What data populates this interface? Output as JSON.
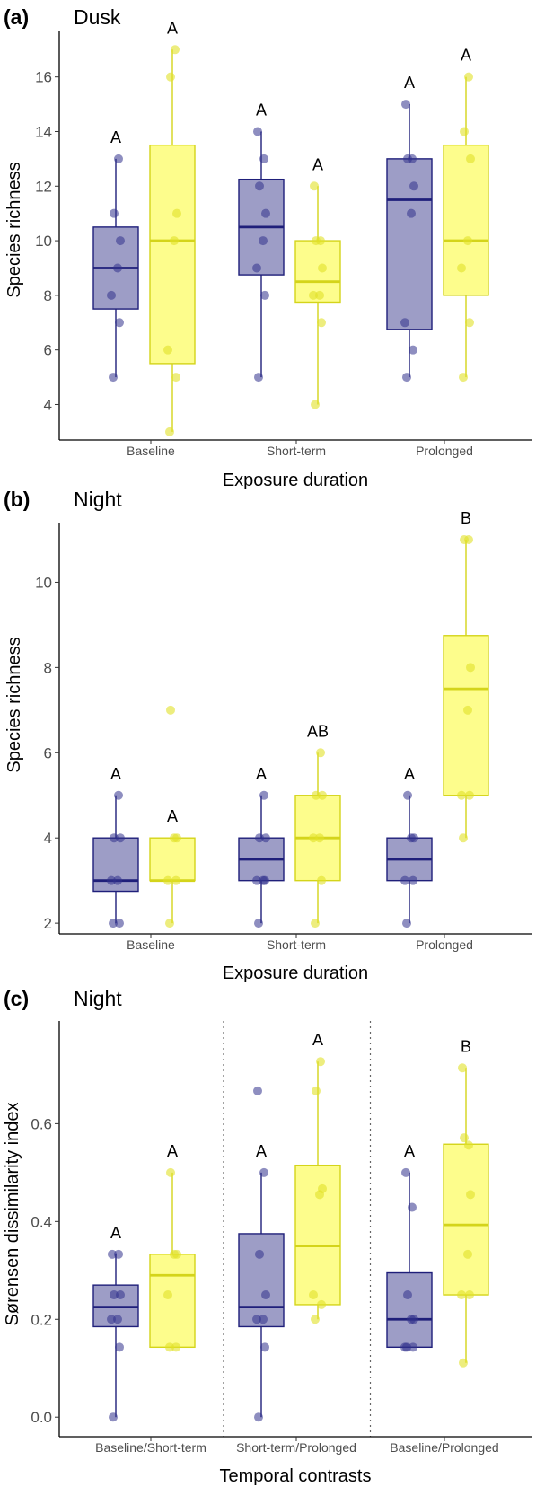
{
  "colors": {
    "group1_fill": "#9d9dc6",
    "group1_line": "#1f1f7a",
    "group2_fill": "#fdfd8c",
    "group2_line": "#d4d41a"
  },
  "chart_data": [
    {
      "type": "box",
      "panel_letter": "(a)",
      "title": "Dusk",
      "xlabel": "Exposure duration",
      "ylabel": "Species richness",
      "ylim": [
        2.7,
        17.7
      ],
      "yticks": [
        4,
        6,
        8,
        10,
        12,
        14,
        16
      ],
      "tick_decimals": 0,
      "grid": false,
      "separators": false,
      "categories": [
        "Baseline",
        "Short-term",
        "Prolonged"
      ],
      "groups": [
        {
          "color": "#9d9dc6",
          "boxes": [
            {
              "min": 5,
              "q1": 7.5,
              "median": 9,
              "q3": 10.5,
              "max": 13,
              "points": [
                5,
                7,
                8,
                9,
                10,
                11,
                13
              ],
              "letter": "A"
            },
            {
              "min": 5,
              "q1": 8.75,
              "median": 10.5,
              "q3": 12.25,
              "max": 14,
              "points": [
                5,
                8,
                9,
                10,
                11,
                12,
                13,
                14
              ],
              "letter": "A"
            },
            {
              "min": 5,
              "q1": 6.75,
              "median": 11.5,
              "q3": 13,
              "max": 15,
              "points": [
                5,
                6,
                7,
                11,
                12,
                13,
                13,
                15
              ],
              "letter": "A"
            }
          ]
        },
        {
          "color": "#fdfd8c",
          "boxes": [
            {
              "min": 3,
              "q1": 5.5,
              "median": 10,
              "q3": 13.5,
              "max": 17,
              "points": [
                3,
                5,
                6,
                10,
                11,
                16,
                17
              ],
              "letter": "A"
            },
            {
              "min": 4,
              "q1": 7.75,
              "median": 8.5,
              "q3": 10,
              "max": 12,
              "points": [
                4,
                7,
                8,
                8,
                9,
                10,
                10,
                12
              ],
              "letter": "A"
            },
            {
              "min": 5,
              "q1": 8,
              "median": 10,
              "q3": 13.5,
              "max": 16,
              "points": [
                5,
                7,
                9,
                10,
                13,
                14,
                16
              ],
              "letter": "A"
            }
          ]
        }
      ]
    },
    {
      "type": "box",
      "panel_letter": "(b)",
      "title": "Night",
      "xlabel": "Exposure duration",
      "ylabel": "Species richness",
      "ylim": [
        1.75,
        11.4
      ],
      "yticks": [
        2,
        4,
        6,
        8,
        10
      ],
      "tick_decimals": 0,
      "grid": false,
      "separators": false,
      "categories": [
        "Baseline",
        "Short-term",
        "Prolonged"
      ],
      "groups": [
        {
          "color": "#9d9dc6",
          "boxes": [
            {
              "min": 2,
              "q1": 2.75,
              "median": 3,
              "q3": 4,
              "max": 5,
              "points": [
                2,
                2,
                3,
                3,
                4,
                4,
                5
              ],
              "letter": "A"
            },
            {
              "min": 2,
              "q1": 3,
              "median": 3.5,
              "q3": 4,
              "max": 5,
              "points": [
                2,
                3,
                3,
                3,
                4,
                4,
                5
              ],
              "letter": "A"
            },
            {
              "min": 2,
              "q1": 3,
              "median": 3.5,
              "q3": 4,
              "max": 5,
              "points": [
                2,
                3,
                3,
                4,
                4,
                5
              ],
              "letter": "A"
            }
          ]
        },
        {
          "color": "#fdfd8c",
          "boxes": [
            {
              "min": 2,
              "q1": 3,
              "median": 3,
              "q3": 4,
              "max": 4,
              "points": [
                2,
                3,
                3,
                4,
                4,
                7
              ],
              "letter": "A"
            },
            {
              "min": 2,
              "q1": 3,
              "median": 4,
              "q3": 5,
              "max": 6,
              "points": [
                2,
                3,
                4,
                4,
                5,
                5,
                6
              ],
              "letter": "AB"
            },
            {
              "min": 4,
              "q1": 5,
              "median": 7.5,
              "q3": 8.75,
              "max": 11,
              "points": [
                4,
                5,
                5,
                7,
                8,
                11,
                11
              ],
              "letter": "B"
            }
          ]
        }
      ]
    },
    {
      "type": "box",
      "panel_letter": "(c)",
      "title": "Night",
      "xlabel": "Temporal contrasts",
      "ylabel": "Sørensen dissimilarity index",
      "ylim": [
        -0.04,
        0.81
      ],
      "yticks": [
        0.0,
        0.2,
        0.4,
        0.6
      ],
      "tick_decimals": 1,
      "grid": false,
      "separators": true,
      "categories": [
        "Baseline/Short-term",
        "Short-term/Prolonged",
        "Baseline/Prolonged"
      ],
      "groups": [
        {
          "color": "#9d9dc6",
          "boxes": [
            {
              "min": 0,
              "q1": 0.185,
              "median": 0.225,
              "q3": 0.27,
              "max": 0.333,
              "points": [
                0,
                0.143,
                0.2,
                0.2,
                0.25,
                0.25,
                0.333,
                0.333
              ],
              "letter": "A"
            },
            {
              "min": 0,
              "q1": 0.185,
              "median": 0.225,
              "q3": 0.375,
              "max": 0.5,
              "points": [
                0,
                0.143,
                0.2,
                0.2,
                0.25,
                0.333,
                0.5,
                0.667
              ],
              "letter": "A"
            },
            {
              "min": 0.143,
              "q1": 0.143,
              "median": 0.2,
              "q3": 0.295,
              "max": 0.5,
              "points": [
                0.143,
                0.143,
                0.143,
                0.2,
                0.2,
                0.25,
                0.429,
                0.5
              ],
              "letter": "A"
            }
          ]
        },
        {
          "color": "#fdfd8c",
          "boxes": [
            {
              "min": 0.143,
              "q1": 0.143,
              "median": 0.29,
              "q3": 0.333,
              "max": 0.5,
              "points": [
                0.143,
                0.143,
                0.25,
                0.333,
                0.333,
                0.5
              ],
              "letter": "A"
            },
            {
              "min": 0.2,
              "q1": 0.23,
              "median": 0.35,
              "q3": 0.515,
              "max": 0.727,
              "points": [
                0.2,
                0.23,
                0.25,
                0.455,
                0.467,
                0.667,
                0.727
              ],
              "letter": "A"
            },
            {
              "min": 0.111,
              "q1": 0.25,
              "median": 0.393,
              "q3": 0.558,
              "max": 0.714,
              "points": [
                0.111,
                0.25,
                0.25,
                0.333,
                0.455,
                0.571,
                0.556,
                0.714
              ],
              "letter": "B"
            }
          ]
        }
      ]
    }
  ]
}
